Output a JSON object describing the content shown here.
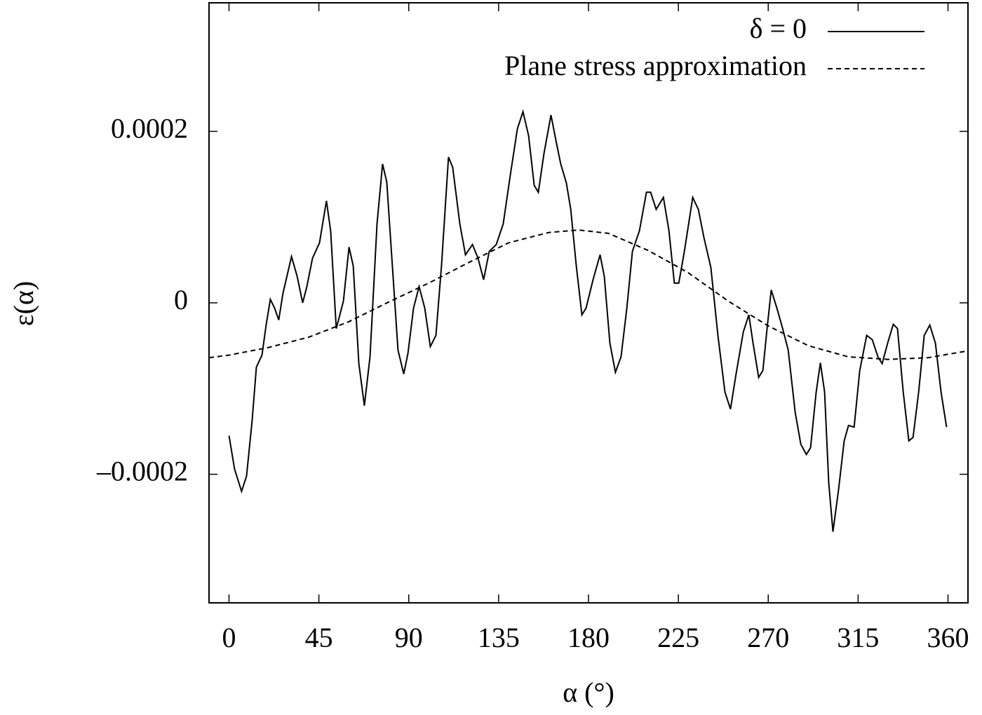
{
  "chart_data": {
    "type": "line",
    "x_label": "α (°)",
    "y_label": "ε(α)",
    "xlim": [
      -10,
      370
    ],
    "ylim": [
      -0.00035,
      0.00035
    ],
    "xticks": [
      0,
      45,
      90,
      135,
      180,
      225,
      270,
      315,
      360
    ],
    "yticks": [
      {
        "value": -0.0002,
        "label": "–0.0002"
      },
      0,
      0.0002
    ],
    "legend": "top-right",
    "series": [
      {
        "name": "δ = 0",
        "color": "#000000",
        "style": "solid",
        "x": [
          0,
          2.8,
          6.3,
          8.8,
          11.6,
          13.7,
          16.5,
          18.6,
          20.7,
          22.8,
          24.9,
          27.0,
          31.3,
          34.1,
          36.9,
          39.0,
          41.8,
          45.3,
          48.8,
          50.9,
          53.7,
          57.3,
          60.1,
          62.2,
          65.0,
          67.8,
          70.6,
          74.1,
          76.9,
          79.0,
          81.8,
          84.6,
          87.5,
          89.6,
          92.4,
          95.2,
          98.0,
          100.8,
          103.6,
          106.4,
          109.9,
          112.0,
          115.6,
          118.4,
          121.9,
          124.7,
          127.5,
          130.3,
          133.8,
          137.3,
          140.9,
          144.4,
          147.2,
          150.0,
          152.8,
          154.9,
          157.7,
          161.2,
          164.0,
          166.1,
          168.9,
          171.1,
          173.9,
          176.7,
          178.8,
          182.3,
          185.8,
          187.9,
          190.7,
          193.5,
          196.3,
          199.2,
          202.0,
          205.5,
          209.0,
          211.1,
          213.9,
          217.5,
          220.3,
          223.0,
          225.2,
          228.0,
          232.2,
          235.0,
          237.8,
          241.3,
          244.8,
          248.3,
          251.1,
          253.9,
          257.5,
          260.3,
          262.4,
          265.2,
          267.3,
          269.4,
          271.5,
          274.3,
          277.2,
          280.0,
          283.5,
          286.3,
          289.1,
          291.2,
          294.0,
          296.1,
          298.2,
          300.3,
          302.4,
          305.2,
          308.0,
          310.2,
          313.0,
          315.8,
          319.3,
          322.1,
          324.9,
          327.0,
          329.8,
          332.6,
          334.7,
          337.6,
          340.4,
          342.5,
          345.3,
          348.1,
          350.9,
          353.7,
          356.5,
          359.3
        ],
        "values": [
          -0.000155,
          -0.000194,
          -0.00022,
          -0.000202,
          -0.000137,
          -7.5e-05,
          -6.1e-05,
          -2.6e-05,
          4e-06,
          -6e-06,
          -2e-05,
          1.1e-05,
          5.4e-05,
          3.1e-05,
          0,
          1.9e-05,
          5.2e-05,
          7e-05,
          0.000119,
          8.4e-05,
          -3e-05,
          2e-06,
          6.5e-05,
          4.3e-05,
          -7.1e-05,
          -0.00012,
          -6.3e-05,
          9.2e-05,
          0.000162,
          0.000141,
          4.3e-05,
          -5.5e-05,
          -8.3e-05,
          -5.9e-05,
          -6e-06,
          1.9e-05,
          -6e-06,
          -5.1e-05,
          -3.8e-05,
          4.3e-05,
          0.00017,
          0.000158,
          9.2e-05,
          5.6e-05,
          6.8e-05,
          5.2e-05,
          2.7e-05,
          6e-05,
          6.8e-05,
          9.2e-05,
          0.00015,
          0.000203,
          0.000223,
          0.000195,
          0.000137,
          0.000129,
          0.000174,
          0.000219,
          0.000186,
          0.000162,
          0.00014,
          0.000109,
          4.3e-05,
          -1.4e-05,
          -6e-06,
          2.7e-05,
          5.6e-05,
          3.1e-05,
          -4.7e-05,
          -8.1e-05,
          -6.3e-05,
          -6e-06,
          6e-05,
          8.4e-05,
          0.000129,
          0.000129,
          0.000109,
          0.000123,
          8.4e-05,
          2.3e-05,
          2.3e-05,
          6e-05,
          0.000123,
          0.000109,
          7.6e-05,
          4.1e-05,
          -3.8e-05,
          -0.000104,
          -0.000124,
          -8.3e-05,
          -3.4e-05,
          -1.4e-05,
          -4.7e-05,
          -8.7e-05,
          -7.9e-05,
          -3e-05,
          1.5e-05,
          -6e-06,
          -3e-05,
          -5.5e-05,
          -0.000128,
          -0.000165,
          -0.000177,
          -0.000169,
          -0.000104,
          -7e-05,
          -0.000104,
          -0.00021,
          -0.000267,
          -0.000218,
          -0.000161,
          -0.000143,
          -0.000145,
          -7.9e-05,
          -3.8e-05,
          -4.3e-05,
          -6.3e-05,
          -7.1e-05,
          -4.7e-05,
          -2.5e-05,
          -3e-05,
          -0.000104,
          -0.000161,
          -0.000157,
          -0.000104,
          -3.8e-05,
          -2.6e-05,
          -4.7e-05,
          -0.000104,
          -0.000145
        ]
      },
      {
        "name": "Plane stress approximation",
        "color": "#000000",
        "style": "dashed",
        "x": [
          -10,
          0,
          20,
          40,
          60,
          80,
          100,
          120,
          140,
          160,
          175,
          190,
          210,
          230,
          250,
          270,
          290,
          310,
          330,
          350,
          370
        ],
        "values": [
          -6.4e-05,
          -6.1e-05,
          -5.2e-05,
          -4e-05,
          -2.2e-05,
          1e-06,
          2.3e-05,
          4.7e-05,
          7e-05,
          8.2e-05,
          8.5e-05,
          8.1e-05,
          6.1e-05,
          3.5e-05,
          2e-06,
          -2.7e-05,
          -5e-05,
          -6.3e-05,
          -6.6e-05,
          -6.4e-05,
          -5.6e-05
        ]
      }
    ]
  }
}
